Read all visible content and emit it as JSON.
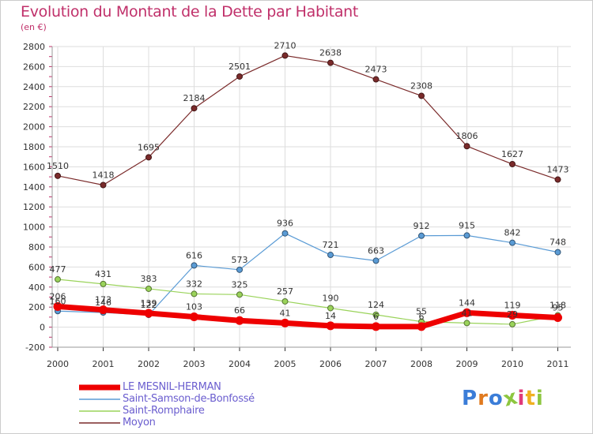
{
  "title": "Evolution du Montant de la Dette par Habitant",
  "subtitle": "(en €)",
  "logo": {
    "text": "Proxiti",
    "colors": [
      "#3b7dd8",
      "#e07a1f",
      "#3b7dd8",
      "#8dc63f",
      "#e03a7a",
      "#f0b020",
      "#8dc63f"
    ]
  },
  "chart_data": {
    "type": "line",
    "categories": [
      "2000",
      "2001",
      "2002",
      "2003",
      "2004",
      "2005",
      "2006",
      "2007",
      "2008",
      "2009",
      "2010",
      "2011"
    ],
    "ylim": [
      -200,
      2800
    ],
    "yticks": [
      "-200",
      "0",
      "200",
      "400",
      "600",
      "800",
      "1000",
      "1200",
      "1400",
      "1600",
      "1800",
      "2000",
      "2200",
      "2400",
      "2600",
      "2800"
    ],
    "grid": true,
    "legend_position": "bottom-left",
    "series": [
      {
        "name": "Moyon",
        "color": "#7a2a2a",
        "line_width": 1.2,
        "values": [
          1510,
          1418,
          1695,
          2184,
          2501,
          2710,
          2638,
          2473,
          2308,
          1806,
          1627,
          1473
        ],
        "labels": [
          "1510",
          "1418",
          "1695",
          "2184",
          "2501",
          "2710",
          "2638",
          "2473",
          "2308",
          "1806",
          "1627",
          "1473"
        ]
      },
      {
        "name": "Saint-Samson-de-Bonfossé",
        "color": "#5a9bd5",
        "line_width": 1.2,
        "values": [
          160,
          146,
          122,
          616,
          573,
          936,
          721,
          663,
          912,
          915,
          842,
          748
        ],
        "labels": [
          "160",
          "146",
          "122",
          "616",
          "573",
          "936",
          "721",
          "663",
          "912",
          "915",
          "842",
          "748"
        ]
      },
      {
        "name": "Saint-Romphaire",
        "color": "#9ad35a",
        "line_width": 1.2,
        "values": [
          477,
          431,
          383,
          332,
          325,
          257,
          190,
          124,
          55,
          41,
          29,
          118
        ],
        "labels": [
          "477",
          "431",
          "383",
          "332",
          "325",
          "257",
          "190",
          "124",
          "55",
          "41",
          "29",
          "118"
        ]
      },
      {
        "name": "LE MESNIL-HERMAN",
        "color": "#ee0000",
        "line_width": 7,
        "values": [
          206,
          173,
          139,
          103,
          66,
          41,
          14,
          6,
          6,
          144,
          119,
          95
        ],
        "labels": [
          "206",
          "173",
          "139",
          "103",
          "66",
          "41",
          "14",
          "6",
          "6",
          "144",
          "119",
          "95"
        ]
      }
    ],
    "legend": [
      "LE MESNIL-HERMAN",
      "Saint-Samson-de-Bonfossé",
      "Saint-Romphaire",
      "Moyon"
    ]
  }
}
